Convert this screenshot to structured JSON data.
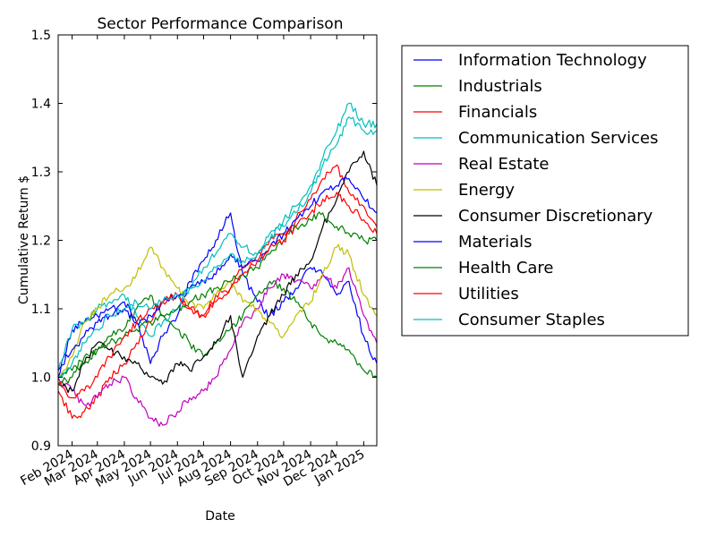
{
  "chart_data": {
    "type": "line",
    "title": "Sector Performance Comparison",
    "xlabel": "Date",
    "ylabel": "Cumulative Return $",
    "ylim": [
      0.9,
      1.5
    ],
    "xlim": [
      "2024-01-16",
      "2025-01-16"
    ],
    "x_ticks": [
      {
        "date": "2024-02-01",
        "label": "Feb 2024"
      },
      {
        "date": "2024-03-01",
        "label": "Mar 2024"
      },
      {
        "date": "2024-04-01",
        "label": "Apr 2024"
      },
      {
        "date": "2024-05-01",
        "label": "May 2024"
      },
      {
        "date": "2024-06-01",
        "label": "Jun 2024"
      },
      {
        "date": "2024-07-01",
        "label": "Jul 2024"
      },
      {
        "date": "2024-08-01",
        "label": "Aug 2024"
      },
      {
        "date": "2024-09-01",
        "label": "Sep 2024"
      },
      {
        "date": "2024-10-01",
        "label": "Oct 2024"
      },
      {
        "date": "2024-11-01",
        "label": "Nov 2024"
      },
      {
        "date": "2024-12-01",
        "label": "Dec 2024"
      },
      {
        "date": "2025-01-01",
        "label": "Jan 2025"
      }
    ],
    "y_ticks": [
      "0.9",
      "1.0",
      "1.1",
      "1.2",
      "1.3",
      "1.4",
      "1.5"
    ],
    "grid": false,
    "legend_position": "outside-right",
    "x": [
      "2024-01-16",
      "2024-02-01",
      "2024-02-15",
      "2024-03-01",
      "2024-03-15",
      "2024-04-01",
      "2024-04-15",
      "2024-05-01",
      "2024-05-15",
      "2024-06-01",
      "2024-06-15",
      "2024-07-01",
      "2024-07-15",
      "2024-08-01",
      "2024-08-15",
      "2024-09-01",
      "2024-09-15",
      "2024-10-01",
      "2024-10-15",
      "2024-11-01",
      "2024-11-15",
      "2024-12-01",
      "2024-12-15",
      "2025-01-01",
      "2025-01-16"
    ],
    "series": [
      {
        "name": "Information Technology",
        "color": "#0000ff",
        "values": [
          1.0,
          1.07,
          1.08,
          1.09,
          1.1,
          1.11,
          1.08,
          1.02,
          1.06,
          1.09,
          1.14,
          1.17,
          1.2,
          1.24,
          1.15,
          1.11,
          1.09,
          1.11,
          1.13,
          1.16,
          1.15,
          1.12,
          1.14,
          1.06,
          1.02
        ]
      },
      {
        "name": "Industrials",
        "color": "#008000",
        "values": [
          1.0,
          1.01,
          1.03,
          1.04,
          1.06,
          1.07,
          1.1,
          1.12,
          1.09,
          1.07,
          1.05,
          1.03,
          1.05,
          1.07,
          1.09,
          1.12,
          1.14,
          1.13,
          1.11,
          1.08,
          1.06,
          1.05,
          1.04,
          1.01,
          1.0
        ]
      },
      {
        "name": "Financials",
        "color": "#ff0000",
        "values": [
          0.98,
          0.94,
          0.95,
          0.97,
          1.0,
          1.02,
          1.05,
          1.08,
          1.11,
          1.12,
          1.1,
          1.09,
          1.12,
          1.13,
          1.16,
          1.18,
          1.2,
          1.21,
          1.23,
          1.26,
          1.29,
          1.31,
          1.27,
          1.25,
          1.22
        ]
      },
      {
        "name": "Communication Services",
        "color": "#00bfbf",
        "values": [
          1.01,
          1.07,
          1.08,
          1.1,
          1.11,
          1.12,
          1.09,
          1.06,
          1.08,
          1.1,
          1.13,
          1.16,
          1.18,
          1.21,
          1.19,
          1.18,
          1.21,
          1.22,
          1.24,
          1.27,
          1.31,
          1.34,
          1.38,
          1.36,
          1.36
        ]
      },
      {
        "name": "Real Estate",
        "color": "#bf00bf",
        "values": [
          1.0,
          0.98,
          0.96,
          0.97,
          0.99,
          1.0,
          0.97,
          0.94,
          0.93,
          0.95,
          0.97,
          0.98,
          1.0,
          1.04,
          1.08,
          1.1,
          1.13,
          1.15,
          1.14,
          1.13,
          1.15,
          1.13,
          1.16,
          1.09,
          1.05
        ]
      },
      {
        "name": "Energy",
        "color": "#bfbf00",
        "values": [
          1.0,
          1.03,
          1.08,
          1.1,
          1.12,
          1.13,
          1.15,
          1.19,
          1.16,
          1.13,
          1.11,
          1.1,
          1.12,
          1.14,
          1.11,
          1.1,
          1.08,
          1.06,
          1.09,
          1.11,
          1.15,
          1.19,
          1.18,
          1.12,
          1.09
        ]
      },
      {
        "name": "Consumer Discretionary",
        "color": "#000000",
        "values": [
          0.99,
          0.98,
          1.02,
          1.05,
          1.04,
          1.03,
          1.02,
          1.0,
          0.99,
          1.02,
          1.01,
          1.03,
          1.05,
          1.09,
          1.0,
          1.06,
          1.09,
          1.12,
          1.15,
          1.17,
          1.22,
          1.26,
          1.3,
          1.33,
          1.28
        ]
      },
      {
        "name": "Materials",
        "color": "#0000ff",
        "values": [
          1.01,
          1.04,
          1.06,
          1.08,
          1.09,
          1.1,
          1.08,
          1.09,
          1.11,
          1.12,
          1.13,
          1.14,
          1.15,
          1.18,
          1.16,
          1.17,
          1.19,
          1.21,
          1.23,
          1.25,
          1.27,
          1.28,
          1.29,
          1.26,
          1.24
        ]
      },
      {
        "name": "Health Care",
        "color": "#008000",
        "values": [
          0.99,
          1.0,
          1.02,
          1.04,
          1.05,
          1.06,
          1.07,
          1.08,
          1.09,
          1.1,
          1.11,
          1.12,
          1.13,
          1.14,
          1.15,
          1.16,
          1.18,
          1.2,
          1.22,
          1.23,
          1.24,
          1.22,
          1.21,
          1.2,
          1.2
        ]
      },
      {
        "name": "Utilities",
        "color": "#ff0000",
        "values": [
          0.99,
          0.97,
          0.98,
          1.0,
          1.03,
          1.06,
          1.08,
          1.1,
          1.11,
          1.12,
          1.1,
          1.09,
          1.11,
          1.13,
          1.15,
          1.17,
          1.19,
          1.2,
          1.22,
          1.24,
          1.26,
          1.27,
          1.25,
          1.23,
          1.21
        ]
      },
      {
        "name": "Consumer Staples",
        "color": "#00bfbf",
        "values": [
          1.0,
          1.02,
          1.05,
          1.07,
          1.09,
          1.1,
          1.11,
          1.1,
          1.11,
          1.12,
          1.13,
          1.14,
          1.16,
          1.18,
          1.17,
          1.18,
          1.2,
          1.23,
          1.25,
          1.28,
          1.32,
          1.36,
          1.4,
          1.37,
          1.37
        ]
      }
    ]
  }
}
